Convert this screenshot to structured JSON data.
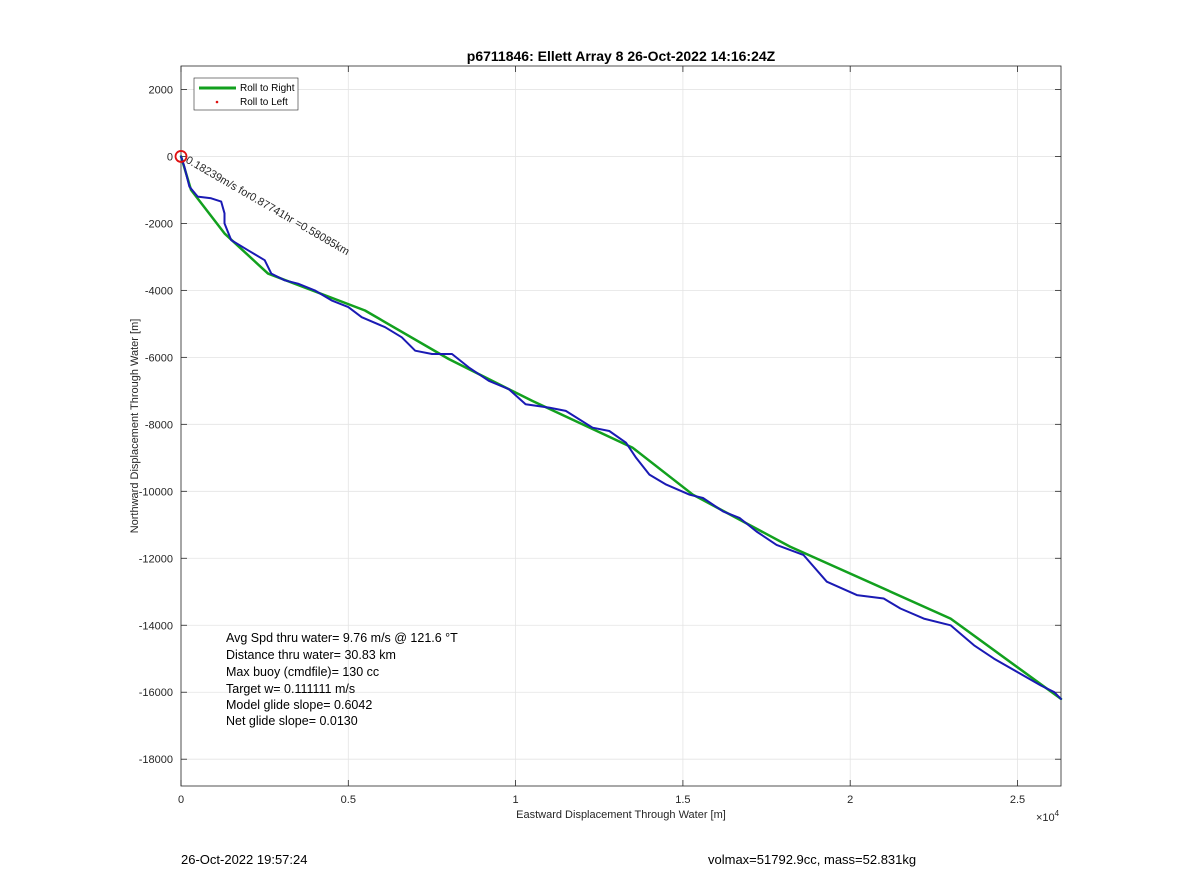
{
  "chart_data": {
    "type": "line",
    "title": "p6711846: Ellett Array 8 26-Oct-2022 14:16:24Z",
    "xlabel": "Eastward Displacement Through Water [m]",
    "ylabel": "Northward Displacement Through Water [m]",
    "xlim": [
      0,
      26300
    ],
    "ylim": [
      -18800,
      2700
    ],
    "x_ticks": [
      0,
      5000,
      10000,
      15000,
      20000,
      25000
    ],
    "x_tick_labels": [
      "0",
      "0.5",
      "1",
      "1.5",
      "2",
      "2.5"
    ],
    "x_exponent_label": "×10",
    "x_exponent_power": "4",
    "y_ticks": [
      2000,
      0,
      -2000,
      -4000,
      -6000,
      -8000,
      -10000,
      -12000,
      -14000,
      -16000,
      -18000
    ],
    "y_tick_labels": [
      "2000",
      "0",
      "-2000",
      "-4000",
      "-6000",
      "-8000",
      "-10000",
      "-12000",
      "-14000",
      "-16000",
      "-18000"
    ],
    "grid": true,
    "legend": {
      "placement": "top-left",
      "entries": [
        {
          "name": "Roll to Right",
          "color": "#12a01e",
          "style": "line"
        },
        {
          "name": "Roll to Left",
          "color": "#e01010",
          "style": "dot"
        }
      ]
    },
    "series": [
      {
        "name": "Roll to Right",
        "color": "#12a01e",
        "points": [
          [
            0,
            0
          ],
          [
            300,
            -1000
          ],
          [
            1300,
            -2300
          ],
          [
            2600,
            -3500
          ],
          [
            5500,
            -4600
          ],
          [
            8000,
            -6050
          ],
          [
            10500,
            -7300
          ],
          [
            13500,
            -8700
          ],
          [
            15300,
            -10100
          ],
          [
            18200,
            -11650
          ],
          [
            23000,
            -13800
          ],
          [
            26300,
            -16200
          ]
        ]
      },
      {
        "color": "#1a1ab4",
        "points": [
          [
            0,
            0
          ],
          [
            100,
            -300
          ],
          [
            250,
            -900
          ],
          [
            500,
            -1200
          ],
          [
            900,
            -1250
          ],
          [
            1200,
            -1350
          ],
          [
            1300,
            -1700
          ],
          [
            1300,
            -2000
          ],
          [
            1500,
            -2500
          ],
          [
            2000,
            -2800
          ],
          [
            2500,
            -3100
          ],
          [
            2700,
            -3500
          ],
          [
            3100,
            -3700
          ],
          [
            3500,
            -3800
          ],
          [
            4000,
            -4000
          ],
          [
            4500,
            -4300
          ],
          [
            5000,
            -4500
          ],
          [
            5400,
            -4800
          ],
          [
            6100,
            -5100
          ],
          [
            6600,
            -5400
          ],
          [
            7000,
            -5800
          ],
          [
            7500,
            -5900
          ],
          [
            8100,
            -5900
          ],
          [
            8600,
            -6300
          ],
          [
            9200,
            -6700
          ],
          [
            9800,
            -6950
          ],
          [
            10300,
            -7400
          ],
          [
            11000,
            -7500
          ],
          [
            11500,
            -7600
          ],
          [
            12300,
            -8100
          ],
          [
            12800,
            -8200
          ],
          [
            13300,
            -8550
          ],
          [
            13600,
            -9000
          ],
          [
            14000,
            -9500
          ],
          [
            14500,
            -9800
          ],
          [
            15200,
            -10100
          ],
          [
            15600,
            -10200
          ],
          [
            16200,
            -10600
          ],
          [
            16700,
            -10800
          ],
          [
            17200,
            -11200
          ],
          [
            17800,
            -11600
          ],
          [
            18600,
            -11900
          ],
          [
            19300,
            -12700
          ],
          [
            20200,
            -13100
          ],
          [
            21000,
            -13200
          ],
          [
            21500,
            -13500
          ],
          [
            22200,
            -13800
          ],
          [
            23000,
            -14000
          ],
          [
            23700,
            -14600
          ],
          [
            24300,
            -15000
          ],
          [
            25000,
            -15400
          ],
          [
            25700,
            -15800
          ],
          [
            26100,
            -16000
          ],
          [
            26300,
            -16200
          ]
        ]
      }
    ],
    "start_marker": {
      "x": 0,
      "y": 0,
      "color": "#e01010"
    },
    "annotations": [
      {
        "text": "0.18239m/s for0.87741hr =0.58085km",
        "x": 150,
        "y": -150
      }
    ],
    "stats": [
      "Avg Spd thru water=  9.76 m/s @ 121.6 °T",
      "Distance thru water= 30.83 km",
      "Max buoy (cmdfile)= 130 cc",
      "Target w= 0.111111 m/s",
      "Model glide slope= 0.6042",
      "Net glide slope= 0.0130"
    ]
  },
  "footer": {
    "left": "26-Oct-2022 19:57:24",
    "right": "volmax=51792.9cc, mass=52.831kg"
  }
}
